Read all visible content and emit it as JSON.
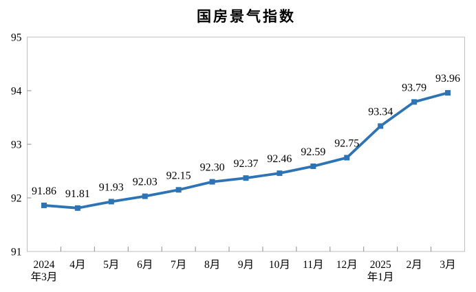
{
  "title": "国房景气指数",
  "chart_data": {
    "type": "line",
    "title": "国房景气指数",
    "categories": [
      "2024年3月",
      "4月",
      "5月",
      "6月",
      "7月",
      "8月",
      "9月",
      "10月",
      "11月",
      "12月",
      "2025年1月",
      "2月",
      "3月"
    ],
    "x_tick_label_lines": [
      [
        "2024",
        "年3月"
      ],
      [
        "4月"
      ],
      [
        "5月"
      ],
      [
        "6月"
      ],
      [
        "7月"
      ],
      [
        "8月"
      ],
      [
        "9月"
      ],
      [
        "10月"
      ],
      [
        "11月"
      ],
      [
        "12月"
      ],
      [
        "2025",
        "年1月"
      ],
      [
        "2月"
      ],
      [
        "3月"
      ]
    ],
    "values": [
      91.86,
      91.81,
      91.93,
      92.03,
      92.15,
      92.3,
      92.37,
      92.46,
      92.59,
      92.75,
      93.34,
      93.79,
      93.96
    ],
    "data_labels": [
      "91.86",
      "91.81",
      "91.93",
      "92.03",
      "92.15",
      "92.30",
      "92.37",
      "92.46",
      "92.59",
      "92.75",
      "93.34",
      "93.79",
      "93.96"
    ],
    "xlabel": "",
    "ylabel": "",
    "ylim": [
      91,
      95
    ],
    "y_ticks": [
      "95",
      "94",
      "93",
      "92",
      "91"
    ],
    "grid": false,
    "legend_position": "none",
    "marker": "square",
    "colors": {
      "series": "#2E74B5",
      "axis_border": "#BFBFBF",
      "tick": "#8C8C8C",
      "text": "#000000",
      "background": "#FFFFFF"
    }
  }
}
